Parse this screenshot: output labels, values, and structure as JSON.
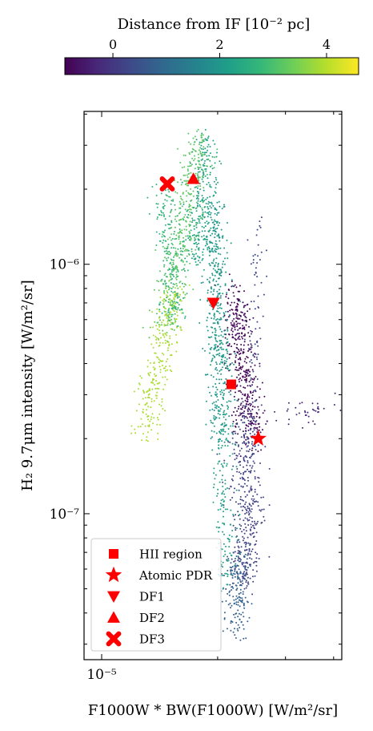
{
  "chart_data": {
    "type": "scatter",
    "xlabel": "F1000W * BW(F1000W) [W/m²/sr]",
    "ylabel": "H₂ 9.7μm intensity [W/m²/sr]",
    "x_scale": "log",
    "y_scale": "log",
    "xlim": [
      9e-06,
      4.2e-05
    ],
    "ylim": [
      2.6e-08,
      4.1e-06
    ],
    "x_ticks": [
      {
        "value": 1e-05,
        "label": "10⁻⁵"
      }
    ],
    "y_ticks": [
      {
        "value": 1e-07,
        "label": "10⁻⁷"
      },
      {
        "value": 1e-06,
        "label": "10⁻⁶"
      }
    ],
    "colorbar": {
      "label": "Distance from IF [10⁻² pc]",
      "range": [
        -0.9,
        4.6
      ],
      "ticks": [
        {
          "value": 0,
          "label": "0"
        },
        {
          "value": 2,
          "label": "2"
        },
        {
          "value": 4,
          "label": "4"
        }
      ],
      "cmap": [
        "#440154",
        "#482878",
        "#3e4989",
        "#31688e",
        "#26828e",
        "#1f9e89",
        "#35b779",
        "#6ece58",
        "#b5de2b",
        "#fde725"
      ]
    },
    "clusters": [
      {
        "d": -0.8,
        "n": 420,
        "x_from": 2.2e-05,
        "y_from": 8e-07,
        "x_to": 2.45e-05,
        "y_to": 2e-07,
        "spread_x": 0.018,
        "spread_y": 0.09
      },
      {
        "d": 0.2,
        "n": 420,
        "x_from": 2.4e-05,
        "y_from": 2.6e-07,
        "x_to": 2.35e-05,
        "y_to": 5e-08,
        "spread_x": 0.02,
        "spread_y": 0.09
      },
      {
        "d": 0.8,
        "n": 170,
        "x_from": 2.25e-05,
        "y_from": 7e-08,
        "x_to": 2.25e-05,
        "y_to": 3.3e-08,
        "spread_x": 0.018,
        "spread_y": 0.05
      },
      {
        "d": 0.3,
        "n": 70,
        "x_from": 2.55e-05,
        "y_from": 1.5e-06,
        "x_to": 2.45e-05,
        "y_to": 3e-07,
        "spread_x": 0.01,
        "spread_y": 0.1
      },
      {
        "d": -0.3,
        "n": 40,
        "x_from": 2.8e-05,
        "y_from": 2.4e-07,
        "x_to": 4e-05,
        "y_to": 2.7e-07,
        "spread_x": 0.03,
        "spread_y": 0.06
      },
      {
        "d": 2.05,
        "n": 500,
        "x_from": 1.95e-05,
        "y_from": 1.8e-06,
        "x_to": 2.05e-05,
        "y_to": 2e-07,
        "spread_x": 0.016,
        "spread_y": 0.08
      },
      {
        "d": 2.3,
        "n": 260,
        "x_from": 1.85e-05,
        "y_from": 3.2e-06,
        "x_to": 1.75e-05,
        "y_to": 1e-06,
        "spread_x": 0.018,
        "spread_y": 0.06
      },
      {
        "d": 2.2,
        "n": 140,
        "x_from": 2.05e-05,
        "y_from": 2.5e-07,
        "x_to": 2.1e-05,
        "y_to": 5e-08,
        "spread_x": 0.014,
        "spread_y": 0.06
      },
      {
        "d": 3.2,
        "n": 380,
        "x_from": 1.8e-05,
        "y_from": 3.3e-06,
        "x_to": 1.45e-05,
        "y_to": 5.5e-07,
        "spread_x": 0.022,
        "spread_y": 0.07
      },
      {
        "d": 3.9,
        "n": 280,
        "x_from": 1.55e-05,
        "y_from": 8e-07,
        "x_to": 1.28e-05,
        "y_to": 2e-07,
        "spread_x": 0.018,
        "spread_y": 0.07
      },
      {
        "d": 2.7,
        "n": 180,
        "x_from": 1.45e-05,
        "y_from": 2e-06,
        "x_to": 1.55e-05,
        "y_to": 6e-07,
        "spread_x": 0.018,
        "spread_y": 0.06
      }
    ],
    "markers": [
      {
        "name": "HII region",
        "shape": "square",
        "x": 2.17e-05,
        "y": 3.3e-07
      },
      {
        "name": "Atomic PDR",
        "shape": "star",
        "x": 2.55e-05,
        "y": 2e-07
      },
      {
        "name": "DF1",
        "shape": "triangle-down",
        "x": 1.95e-05,
        "y": 7e-07
      },
      {
        "name": "DF2",
        "shape": "triangle-up",
        "x": 1.73e-05,
        "y": 2.2e-06
      },
      {
        "name": "DF3",
        "shape": "x",
        "x": 1.48e-05,
        "y": 2.1e-06
      }
    ],
    "marker_color": "#ff0000",
    "legend_placement": "lower-left"
  }
}
